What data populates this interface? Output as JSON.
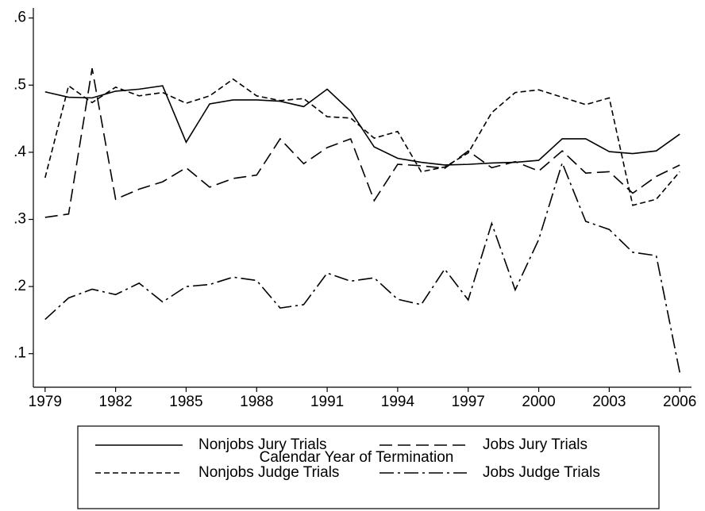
{
  "chart_data": {
    "type": "line",
    "x_label": "Calendar Year of Termination",
    "x": [
      1979,
      1980,
      1981,
      1982,
      1983,
      1984,
      1985,
      1986,
      1987,
      1988,
      1989,
      1990,
      1991,
      1992,
      1993,
      1994,
      1995,
      1996,
      1997,
      1998,
      1999,
      2000,
      2001,
      2002,
      2003,
      2004,
      2005,
      2006
    ],
    "xlim": [
      1978.5,
      2006.5
    ],
    "xticks": [
      1979,
      1982,
      1985,
      1988,
      1991,
      1994,
      1997,
      2000,
      2003,
      2006
    ],
    "ylim": [
      0.05,
      0.615
    ],
    "yticks": [
      {
        "value": 0.1,
        "label": ".1"
      },
      {
        "value": 0.2,
        "label": ".2"
      },
      {
        "value": 0.3,
        "label": ".3"
      },
      {
        "value": 0.4,
        "label": ".4"
      },
      {
        "value": 0.5,
        "label": ".5"
      },
      {
        "value": 0.6,
        "label": ".6"
      }
    ],
    "grid": false,
    "series": [
      {
        "name": "Nonjobs Jury Trials",
        "color": "#000000",
        "style": "solid",
        "values": [
          0.49,
          0.482,
          0.481,
          0.491,
          0.494,
          0.499,
          0.415,
          0.472,
          0.478,
          0.478,
          0.476,
          0.468,
          0.494,
          0.461,
          0.408,
          0.391,
          0.385,
          0.381,
          0.382,
          0.384,
          0.385,
          0.388,
          0.42,
          0.42,
          0.401,
          0.398,
          0.402,
          0.427
        ]
      },
      {
        "name": "Jobs Jury Trials",
        "color": "#000000",
        "style": "dash",
        "values": [
          0.303,
          0.308,
          0.525,
          0.33,
          0.345,
          0.356,
          0.377,
          0.348,
          0.361,
          0.366,
          0.42,
          0.383,
          0.407,
          0.42,
          0.328,
          0.382,
          0.38,
          0.376,
          0.402,
          0.377,
          0.386,
          0.372,
          0.402,
          0.369,
          0.371,
          0.339,
          0.364,
          0.381
        ]
      },
      {
        "name": "Nonjobs Judge Trials",
        "color": "#000000",
        "style": "shortdash",
        "values": [
          0.362,
          0.499,
          0.474,
          0.497,
          0.484,
          0.489,
          0.473,
          0.484,
          0.509,
          0.484,
          0.477,
          0.48,
          0.453,
          0.451,
          0.421,
          0.431,
          0.371,
          0.378,
          0.399,
          0.459,
          0.489,
          0.493,
          0.482,
          0.471,
          0.481,
          0.321,
          0.33,
          0.371
        ]
      },
      {
        "name": "Jobs Judge Trials",
        "color": "#000000",
        "style": "dashdot",
        "values": [
          0.151,
          0.183,
          0.196,
          0.188,
          0.205,
          0.177,
          0.2,
          0.203,
          0.214,
          0.209,
          0.168,
          0.173,
          0.22,
          0.208,
          0.213,
          0.181,
          0.173,
          0.226,
          0.18,
          0.294,
          0.195,
          0.27,
          0.384,
          0.297,
          0.285,
          0.251,
          0.246,
          0.072
        ]
      }
    ]
  }
}
